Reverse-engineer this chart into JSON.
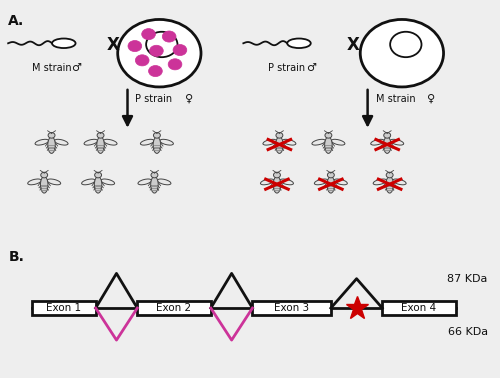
{
  "fig_width": 5.0,
  "fig_height": 3.78,
  "dpi": 100,
  "panel_A_label": "A.",
  "panel_B_label": "B.",
  "bg_color": "#eeeeee",
  "panel_A_bg": "#f8f8f8",
  "panel_B_bg": "#f8f8f8",
  "left_cross_label1": "M strain",
  "left_cross_label2": "P strain",
  "right_cross_label1": "P strain",
  "right_cross_label2": "M strain",
  "male_symbol": "♂",
  "female_symbol": "♀",
  "kda87": "87 KDa",
  "kda66": "66 KDa",
  "exon_labels": [
    "Exon 1",
    "Exon 2",
    "Exon 3",
    "Exon 4"
  ],
  "pink_color": "#CC3399",
  "red_color": "#CC0000",
  "black_color": "#111111",
  "fly_body_color": "#cccccc",
  "fly_edge_color": "#444444"
}
